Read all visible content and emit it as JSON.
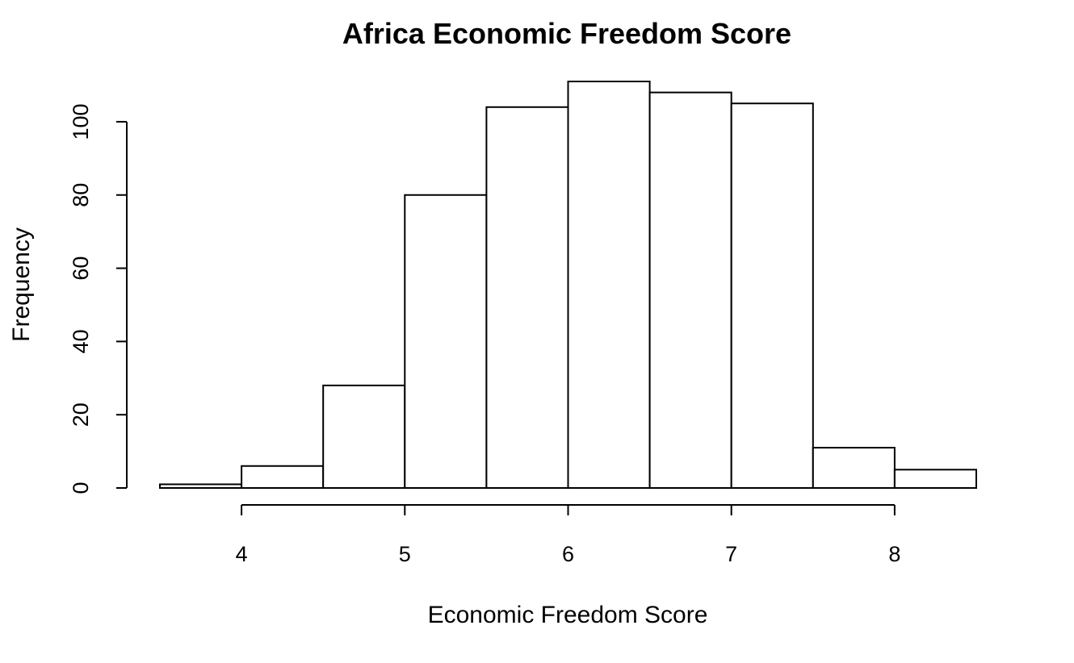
{
  "chart_data": {
    "type": "bar",
    "title": "Africa Economic Freedom Score",
    "xlabel": "Economic Freedom Score",
    "ylabel": "Frequency",
    "bins": [
      {
        "start": 3.5,
        "end": 4.0,
        "count": 1
      },
      {
        "start": 4.0,
        "end": 4.5,
        "count": 6
      },
      {
        "start": 4.5,
        "end": 5.0,
        "count": 28
      },
      {
        "start": 5.0,
        "end": 5.5,
        "count": 80
      },
      {
        "start": 5.5,
        "end": 6.0,
        "count": 104
      },
      {
        "start": 6.0,
        "end": 6.5,
        "count": 111
      },
      {
        "start": 6.5,
        "end": 7.0,
        "count": 108
      },
      {
        "start": 7.0,
        "end": 7.5,
        "count": 105
      },
      {
        "start": 7.5,
        "end": 8.0,
        "count": 11
      },
      {
        "start": 8.0,
        "end": 8.5,
        "count": 5
      }
    ],
    "xticks": [
      "4",
      "5",
      "6",
      "7",
      "8"
    ],
    "yticks": [
      "0",
      "20",
      "40",
      "60",
      "80",
      "100"
    ],
    "xlim": [
      3.5,
      8.5
    ],
    "ylim": [
      0,
      111
    ],
    "grid": false,
    "colors": {
      "bar_fill": "#ffffff",
      "bar_stroke": "#000000"
    }
  }
}
